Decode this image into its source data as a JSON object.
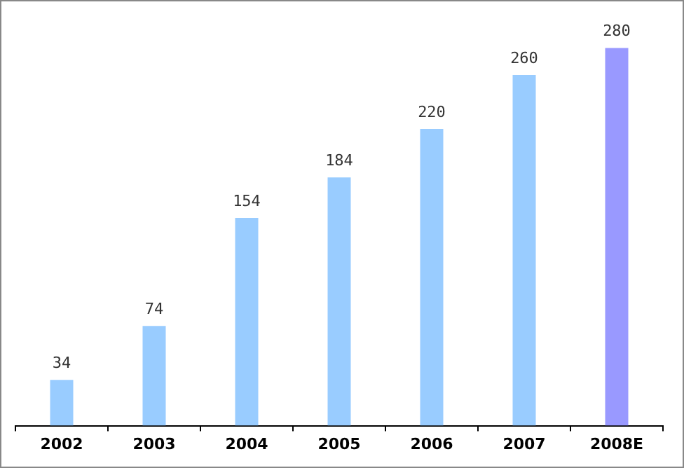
{
  "chart_data": {
    "type": "bar",
    "categories": [
      "2002",
      "2003",
      "2004",
      "2005",
      "2006",
      "2007",
      "2008E"
    ],
    "values": [
      34,
      74,
      154,
      184,
      220,
      260,
      280
    ],
    "colors": [
      "#99ccff",
      "#99ccff",
      "#99ccff",
      "#99ccff",
      "#99ccff",
      "#99ccff",
      "#9999ff"
    ],
    "data_labels": true,
    "grid": false,
    "legend": false,
    "tick_labels": "x"
  }
}
